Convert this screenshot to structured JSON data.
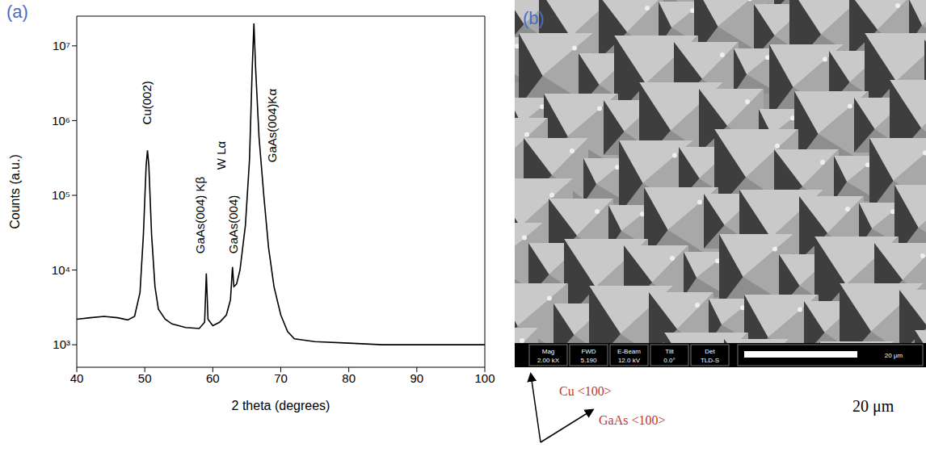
{
  "chart_data": {
    "type": "line",
    "panel": "(a)",
    "x_label": "2 theta (degrees)",
    "y_label": "Counts (a.u.)",
    "log": "y",
    "color": "#000000",
    "xlim": [
      40,
      100
    ],
    "ylim": [
      500,
      25000000
    ],
    "xticks": [
      40,
      50,
      60,
      70,
      80,
      90,
      100
    ],
    "yticks": [
      {
        "value": 1000,
        "label": "10³"
      },
      {
        "value": 10000,
        "label": "10⁴"
      },
      {
        "value": 100000,
        "label": "10⁵"
      },
      {
        "value": 1000000,
        "label": "10⁶"
      },
      {
        "value": 10000000,
        "label": "10⁷"
      }
    ],
    "x": [
      40,
      42,
      44,
      46,
      47.5,
      48.5,
      49.3,
      49.8,
      50.2,
      50.4,
      50.6,
      51.0,
      51.5,
      52,
      53,
      54,
      56,
      58,
      58.8,
      59.05,
      59.3,
      60,
      61,
      62,
      62.6,
      62.9,
      63.1,
      63.5,
      64,
      64.8,
      65.4,
      65.8,
      66.05,
      66.3,
      66.8,
      67.5,
      68.2,
      69,
      70,
      71,
      72,
      75,
      80,
      85,
      90,
      95,
      100
    ],
    "values": [
      2200,
      2300,
      2400,
      2300,
      2150,
      2400,
      5000,
      30000,
      250000,
      400000,
      250000,
      30000,
      6000,
      3000,
      2200,
      1900,
      1700,
      1650,
      2000,
      9000,
      2200,
      1800,
      2000,
      2500,
      4000,
      11000,
      6000,
      6500,
      10000,
      40000,
      300000,
      5000000,
      20000000,
      5000000,
      600000,
      100000,
      20000,
      6000,
      2500,
      1500,
      1200,
      1100,
      1050,
      1000,
      1000,
      1000,
      1000
    ],
    "annotations": [
      {
        "text": "Cu(002)",
        "x": 50.9,
        "y": 800000
      },
      {
        "text": "GaAs(004) Kβ",
        "x": 58.8,
        "y": 15000
      },
      {
        "text": "W Lα",
        "x": 61.9,
        "y": 200000
      },
      {
        "text": "GaAs(004)",
        "x": 63.6,
        "y": 15000
      },
      {
        "text": "GaAs(004)Kα",
        "x": 69.3,
        "y": 250000
      }
    ]
  },
  "image": {
    "panel": "(b)",
    "info_bar": [
      {
        "name": "Mag",
        "value": "2.00 kX"
      },
      {
        "name": "FWD",
        "value": "5.190"
      },
      {
        "name": "E-Beam",
        "value": "12.0 kV"
      },
      {
        "name": "Tilt",
        "value": "0.0°"
      },
      {
        "name": "Det",
        "value": "TLD-S"
      }
    ],
    "scale_bar_label": "20 μm",
    "directions": [
      "Cu <100>",
      "GaAs <100>"
    ],
    "caption": "20 μm"
  }
}
